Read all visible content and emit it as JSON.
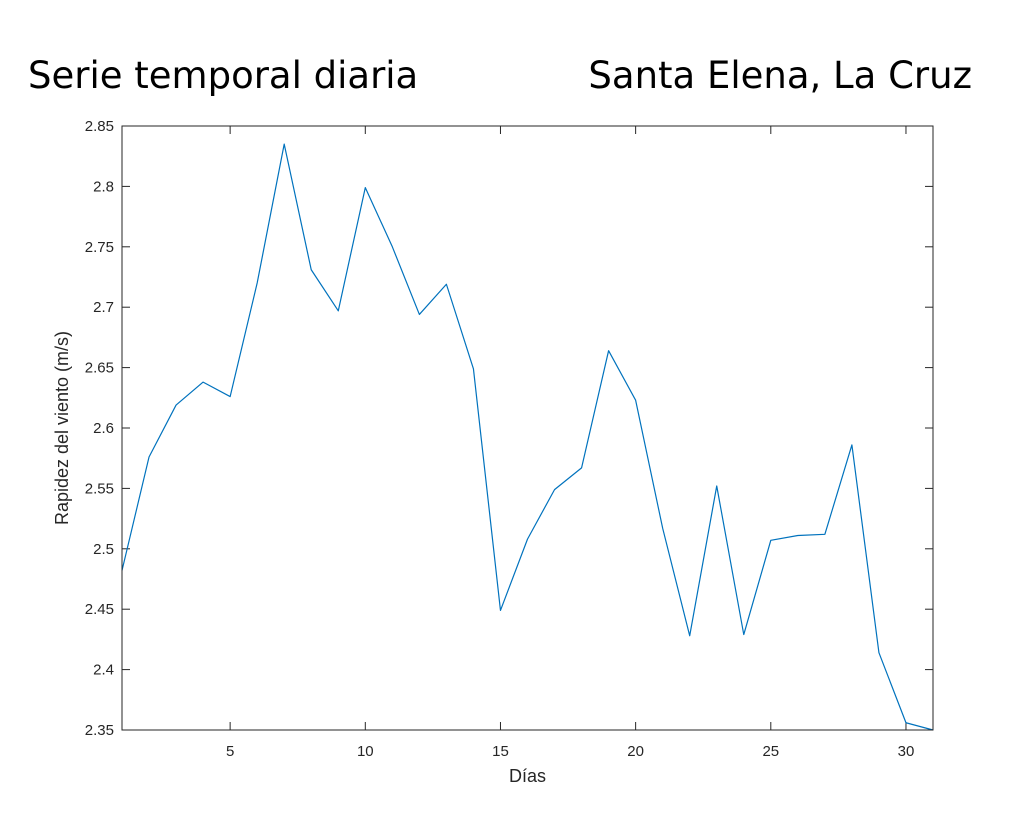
{
  "chart_data": {
    "type": "line",
    "title_left": "Serie temporal diaria",
    "title_right": "Santa Elena, La Cruz",
    "xlabel": "Días",
    "ylabel": "Rapidez del viento (m/s)",
    "xlim": [
      1,
      31
    ],
    "ylim": [
      2.35,
      2.85
    ],
    "xticks": [
      5,
      10,
      15,
      20,
      25,
      30
    ],
    "xtick_labels": [
      "5",
      "10",
      "15",
      "20",
      "25",
      "30"
    ],
    "yticks": [
      2.35,
      2.4,
      2.45,
      2.5,
      2.55,
      2.6,
      2.65,
      2.7,
      2.75,
      2.8,
      2.85
    ],
    "ytick_labels": [
      "2.35",
      "2.4",
      "2.45",
      "2.5",
      "2.55",
      "2.6",
      "2.65",
      "2.7",
      "2.75",
      "2.8",
      "2.85"
    ],
    "grid": false,
    "series": [
      {
        "color": "#0072BD",
        "x": [
          1,
          2,
          3,
          4,
          5,
          6,
          7,
          8,
          9,
          10,
          11,
          12,
          13,
          14,
          15,
          16,
          17,
          18,
          19,
          20,
          21,
          22,
          23,
          24,
          25,
          26,
          27,
          28,
          29,
          30,
          31
        ],
        "values": [
          2.482,
          2.576,
          2.619,
          2.638,
          2.626,
          2.72,
          2.835,
          2.731,
          2.697,
          2.799,
          2.75,
          2.694,
          2.719,
          2.649,
          2.449,
          2.508,
          2.549,
          2.567,
          2.664,
          2.623,
          2.517,
          2.428,
          2.552,
          2.429,
          2.507,
          2.511,
          2.512,
          2.586,
          2.414,
          2.356,
          2.35
        ]
      }
    ]
  }
}
